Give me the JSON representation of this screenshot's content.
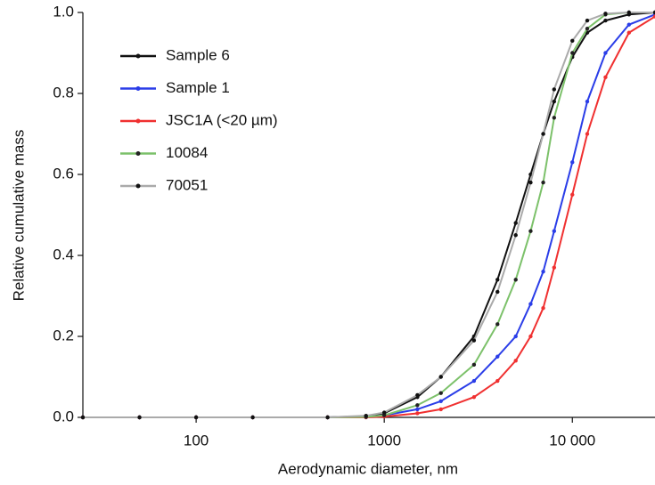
{
  "chart_data": {
    "type": "line",
    "x_label": "Aerodynamic diameter, nm",
    "y_label": "Relative cumulative mass",
    "x": [
      25,
      50,
      100,
      200,
      500,
      800,
      1000,
      1500,
      2000,
      3000,
      4000,
      5000,
      6000,
      7000,
      8000,
      10000,
      12000,
      15000,
      20000,
      27500
    ],
    "xlim": [
      25,
      27500
    ],
    "xticks": [
      100,
      1000,
      {
        "value": 10000,
        "label": "10 000"
      }
    ],
    "x_log": true,
    "ylim": [
      0,
      1
    ],
    "yticks": [
      {
        "value": 0,
        "label": "0.0"
      },
      0.2,
      0.4,
      0.6,
      0.8,
      {
        "value": 1,
        "label": "1.0"
      }
    ],
    "legend": "upper left",
    "series": [
      {
        "name": "Sample 6",
        "color": "#111111",
        "marker_color": "#111111",
        "values": [
          0,
          0,
          0,
          0,
          0,
          0.003,
          0.01,
          0.05,
          0.1,
          0.2,
          0.34,
          0.48,
          0.6,
          0.7,
          0.78,
          0.89,
          0.95,
          0.98,
          0.995,
          1
        ]
      },
      {
        "name": "Sample 1",
        "color": "#2a3de8",
        "marker_color": "#2a3de8",
        "values": [
          0,
          0,
          0,
          0,
          0,
          0.001,
          0.005,
          0.02,
          0.04,
          0.09,
          0.15,
          0.2,
          0.28,
          0.36,
          0.46,
          0.63,
          0.78,
          0.9,
          0.97,
          0.995
        ]
      },
      {
        "name": "JSC1A (<20 µm)",
        "color": "#f03030",
        "marker_color": "#f03030",
        "values": [
          0,
          0,
          0,
          0,
          0,
          0,
          0.002,
          0.01,
          0.02,
          0.05,
          0.09,
          0.14,
          0.2,
          0.27,
          0.37,
          0.55,
          0.7,
          0.84,
          0.95,
          0.99
        ]
      },
      {
        "name": "10084",
        "color": "#7cc16a",
        "marker_color": "#222222",
        "values": [
          0,
          0,
          0,
          0,
          0,
          0.001,
          0.005,
          0.03,
          0.06,
          0.13,
          0.23,
          0.34,
          0.46,
          0.58,
          0.74,
          0.9,
          0.96,
          0.995,
          1,
          1
        ]
      },
      {
        "name": "70051",
        "color": "#aaaaaa",
        "marker_color": "#111111",
        "values": [
          0,
          0,
          0,
          0,
          0,
          0.004,
          0.012,
          0.055,
          0.1,
          0.19,
          0.31,
          0.45,
          0.58,
          0.7,
          0.81,
          0.93,
          0.98,
          0.997,
          1,
          1
        ]
      }
    ]
  }
}
